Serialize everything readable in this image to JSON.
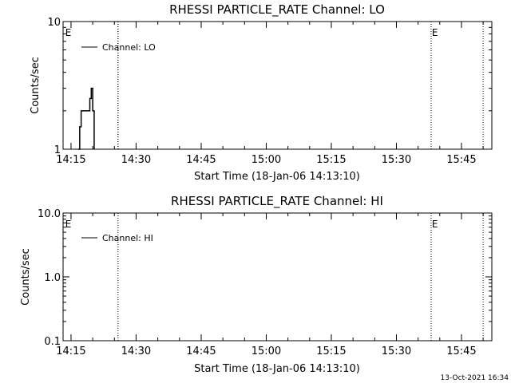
{
  "footer": {
    "timestamp": "13-Oct-2021 16:34"
  },
  "chart_data": [
    {
      "type": "line",
      "title": "RHESSI PARTICLE_RATE Channel: LO",
      "xlabel": "Start Time (18-Jan-06 14:13:10)",
      "ylabel": "Counts/sec",
      "y_scale": "log",
      "ylim": [
        1,
        10
      ],
      "y_ticks": [
        "1",
        "10"
      ],
      "y_tick_values": [
        1,
        10
      ],
      "xlim": [
        "14:13:10",
        "15:52:00"
      ],
      "x_ticks": [
        "14:15",
        "14:30",
        "14:45",
        "15:00",
        "15:15",
        "15:30",
        "15:45"
      ],
      "legend": {
        "placement": "top-left",
        "entries": [
          "Channel: LO"
        ]
      },
      "eclipse_markers": {
        "label": "E",
        "times": [
          "14:13:30",
          "15:38:00"
        ]
      },
      "event_lines": [
        "14:25:50",
        "14:25:50",
        "15:38:00",
        "15:50:00"
      ],
      "series": [
        {
          "name": "Channel: LO",
          "x": [
            "14:16:40",
            "14:17:00",
            "14:17:20",
            "14:17:40",
            "14:18:00",
            "14:18:30",
            "14:19:00",
            "14:19:20",
            "14:19:40",
            "14:20:00",
            "14:20:20"
          ],
          "y": [
            1,
            1.5,
            2,
            2,
            2,
            2,
            2,
            2.5,
            3,
            2,
            1
          ]
        }
      ]
    },
    {
      "type": "line",
      "title": "RHESSI PARTICLE_RATE Channel: HI",
      "xlabel": "Start Time (18-Jan-06 14:13:10)",
      "ylabel": "Counts/sec",
      "y_scale": "log",
      "ylim": [
        0.1,
        10
      ],
      "y_ticks": [
        "0.1",
        "1.0",
        "10.0"
      ],
      "y_tick_values": [
        0.1,
        1,
        10
      ],
      "xlim": [
        "14:13:10",
        "15:52:00"
      ],
      "x_ticks": [
        "14:15",
        "14:30",
        "14:45",
        "15:00",
        "15:15",
        "15:30",
        "15:45"
      ],
      "legend": {
        "placement": "top-left",
        "entries": [
          "Channel: HI"
        ]
      },
      "eclipse_markers": {
        "label": "E",
        "times": [
          "14:13:30",
          "15:38:00"
        ]
      },
      "event_lines": [
        "14:25:50",
        "15:38:00",
        "15:50:00"
      ],
      "series": [
        {
          "name": "Channel: HI",
          "x": [],
          "y": []
        }
      ]
    }
  ]
}
